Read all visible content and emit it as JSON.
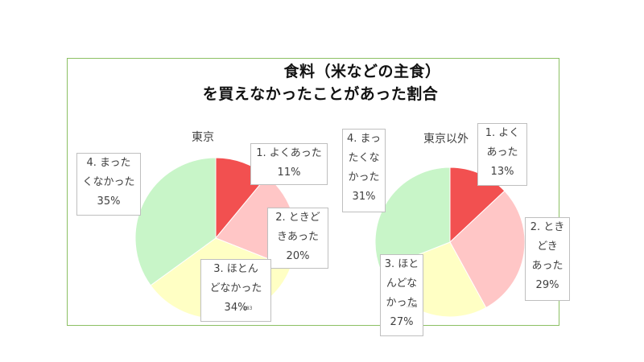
{
  "title": {
    "line1": "食料（米などの主食）",
    "line2": "を買えなかったことがあった割合"
  },
  "colors": {
    "border": "#8cc063",
    "series": [
      "#f25050",
      "#ffc6c6",
      "#ffffc4",
      "#c8f5c8"
    ]
  },
  "tiny_texts": [
    "183",
    "...58"
  ],
  "chart_data": [
    {
      "type": "pie",
      "title": "東京",
      "categories": [
        "1. よくあった",
        "2. ときどきあった",
        "3. ほとんどなかった",
        "4. まったくなかった"
      ],
      "values": [
        11,
        20,
        34,
        35
      ],
      "labels": [
        [
          "1. よくあった",
          "11%"
        ],
        [
          "2. ときど",
          "きあった",
          "20%"
        ],
        [
          "3. ほとん",
          "どなかった",
          "34%"
        ],
        [
          "4. まった",
          "くなかった",
          "35%"
        ]
      ]
    },
    {
      "type": "pie",
      "title": "東京以外",
      "categories": [
        "1. よくあった",
        "2. ときどきあった",
        "3. ほとんどなかった",
        "4. まったくなかった"
      ],
      "values": [
        13,
        29,
        27,
        31
      ],
      "labels": [
        [
          "1. よく",
          "あった",
          "13%"
        ],
        [
          "2. とき",
          "どき",
          "あった",
          "29%"
        ],
        [
          "3. ほと",
          "んどな",
          "かった",
          "27%"
        ],
        [
          "4. まっ",
          "たくな",
          "かった",
          "31%"
        ]
      ]
    }
  ]
}
